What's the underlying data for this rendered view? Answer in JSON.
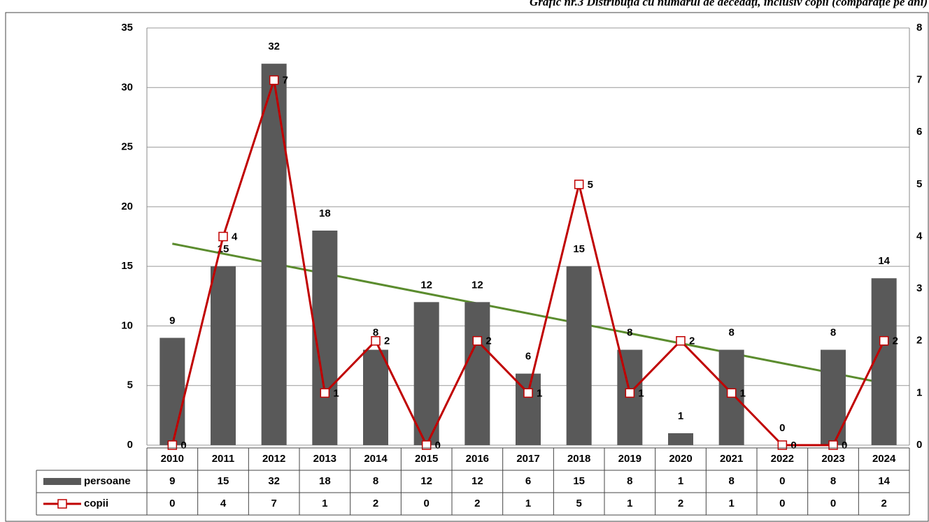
{
  "chart_data": {
    "type": "bar_line",
    "title": "Grafic nr.3 Distribuţia cu numărul de decedaţi, inclusiv copii (comparaţie pe ani)",
    "categories": [
      "2010",
      "2011",
      "2012",
      "2013",
      "2014",
      "2015",
      "2016",
      "2017",
      "2018",
      "2019",
      "2020",
      "2021",
      "2022",
      "2023",
      "2024"
    ],
    "series": [
      {
        "name": "persoane",
        "type": "bar",
        "color": "#595959",
        "values": [
          9,
          15,
          32,
          18,
          8,
          12,
          12,
          6,
          15,
          8,
          1,
          8,
          0,
          8,
          14
        ]
      },
      {
        "name": "copii",
        "type": "line",
        "axis": "y2",
        "color": "#c00000",
        "values": [
          0,
          4,
          7,
          1,
          2,
          0,
          2,
          1,
          5,
          1,
          2,
          1,
          0,
          0,
          2
        ]
      }
    ],
    "trendline": {
      "color": "#5b8c2e",
      "values": [
        16.9,
        5.2
      ]
    },
    "ylim": [
      0,
      35
    ],
    "yticks": [
      0,
      5,
      10,
      15,
      20,
      25,
      30,
      35
    ],
    "y2lim": [
      0,
      8
    ],
    "y2ticks": [
      0,
      1,
      2,
      3,
      4,
      5,
      6,
      7,
      8
    ],
    "grid": true,
    "data_table": true
  }
}
